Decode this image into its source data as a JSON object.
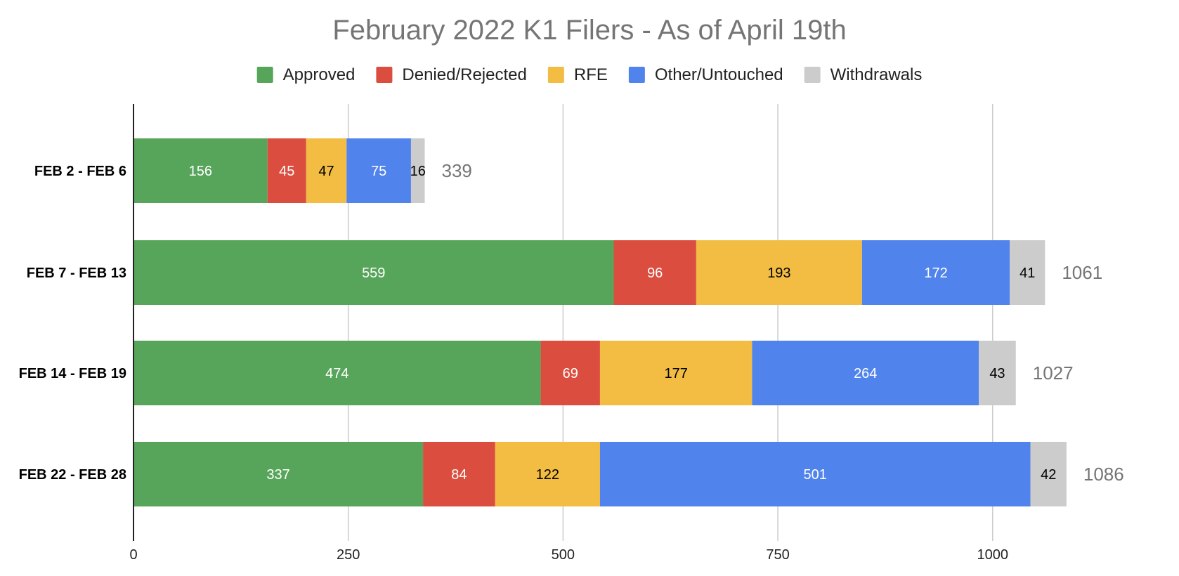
{
  "chart_data": {
    "type": "bar",
    "orientation": "horizontal",
    "stacked": true,
    "title": "February 2022 K1 Filers - As of April 19th",
    "xlabel": "",
    "ylabel": "",
    "xlim": [
      0,
      1100
    ],
    "x_ticks": [
      0,
      250,
      500,
      750,
      1000
    ],
    "grid": "vertical",
    "legend_position": "top",
    "categories": [
      "FEB 2 - FEB 6",
      "FEB 7 - FEB 13",
      "FEB 14 - FEB 19",
      "FEB 22 - FEB 28"
    ],
    "series": [
      {
        "name": "Approved",
        "color": "#57a55a",
        "label_color": "#ffffff",
        "values": [
          156,
          559,
          474,
          337
        ]
      },
      {
        "name": "Denied/Rejected",
        "color": "#db4e3f",
        "label_color": "#ffffff",
        "values": [
          45,
          96,
          69,
          84
        ]
      },
      {
        "name": "RFE",
        "color": "#f2bd42",
        "label_color": "#000000",
        "values": [
          47,
          193,
          177,
          122
        ]
      },
      {
        "name": "Other/Untouched",
        "color": "#5083ec",
        "label_color": "#ffffff",
        "values": [
          75,
          172,
          264,
          501
        ]
      },
      {
        "name": "Withdrawals",
        "color": "#cccccc",
        "label_color": "#000000",
        "values": [
          16,
          41,
          43,
          42
        ]
      }
    ],
    "totals": [
      339,
      1061,
      1027,
      1086
    ]
  }
}
